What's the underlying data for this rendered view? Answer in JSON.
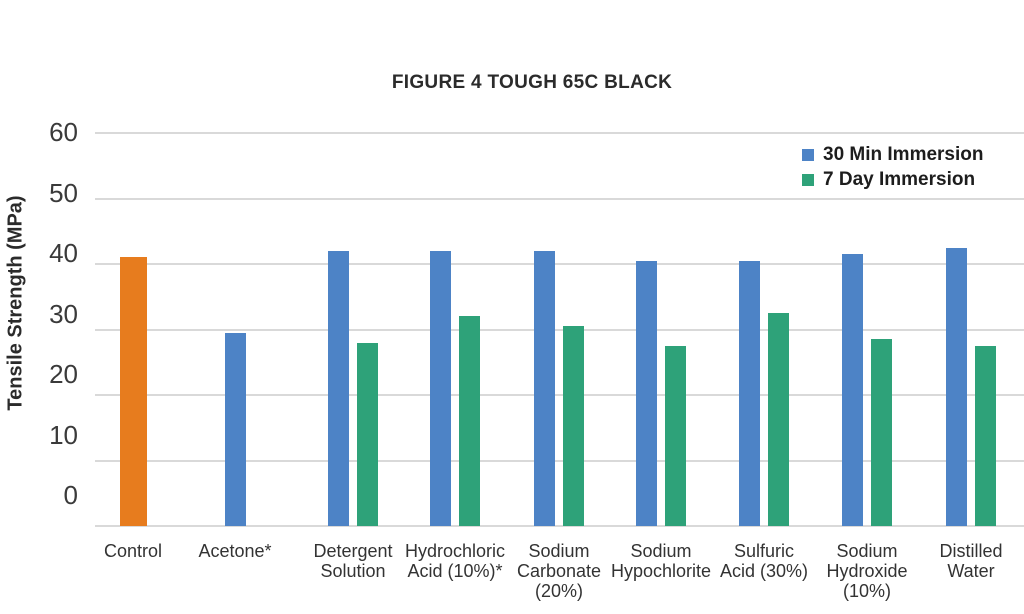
{
  "chart_data": {
    "type": "bar",
    "title": "FIGURE 4 TOUGH 65C BLACK",
    "xlabel": "",
    "ylabel": "Tensile Strength (MPa)",
    "units": "MPa",
    "ylim": [
      0,
      60
    ],
    "yticks": [
      0,
      10,
      20,
      30,
      40,
      50,
      60
    ],
    "grid": true,
    "gridline_color": "#D9D9D9",
    "legend_position": "top-right",
    "categories": [
      {
        "label": "Control",
        "lines": [
          "Control"
        ]
      },
      {
        "label": "Acetone*",
        "lines": [
          "Acetone*"
        ]
      },
      {
        "label": "Detergent Solution",
        "lines": [
          "Detergent",
          "Solution"
        ]
      },
      {
        "label": "Hydrochloric Acid (10%)*",
        "lines": [
          "Hydrochloric",
          "Acid (10%)*"
        ]
      },
      {
        "label": "Sodium Carbonate (20%)",
        "lines": [
          "Sodium",
          "Carbonate",
          "(20%)"
        ]
      },
      {
        "label": "Sodium Hypochlorite",
        "lines": [
          "Sodium",
          "Hypochlorite"
        ]
      },
      {
        "label": "Sulfuric Acid (30%)",
        "lines": [
          "Sulfuric",
          "Acid (30%)"
        ]
      },
      {
        "label": "Sodium Hydroxide (10%)",
        "lines": [
          "Sodium",
          "Hydroxide",
          "(10%)"
        ]
      },
      {
        "label": "Distilled Water",
        "lines": [
          "Distilled",
          "Water"
        ]
      }
    ],
    "series": [
      {
        "name": "30 Min Immersion",
        "color": "#4D83C6",
        "values": [
          null,
          29.5,
          42,
          42,
          42,
          40.5,
          40.5,
          41.5,
          42.5
        ]
      },
      {
        "name": "7 Day Immersion",
        "color": "#2EA279",
        "values": [
          null,
          null,
          28,
          32,
          30.5,
          27.5,
          32.5,
          28.5,
          27.5
        ]
      }
    ],
    "control_bar": {
      "category": "Control",
      "category_index": 0,
      "value": 41,
      "color": "#E77C1E"
    }
  }
}
